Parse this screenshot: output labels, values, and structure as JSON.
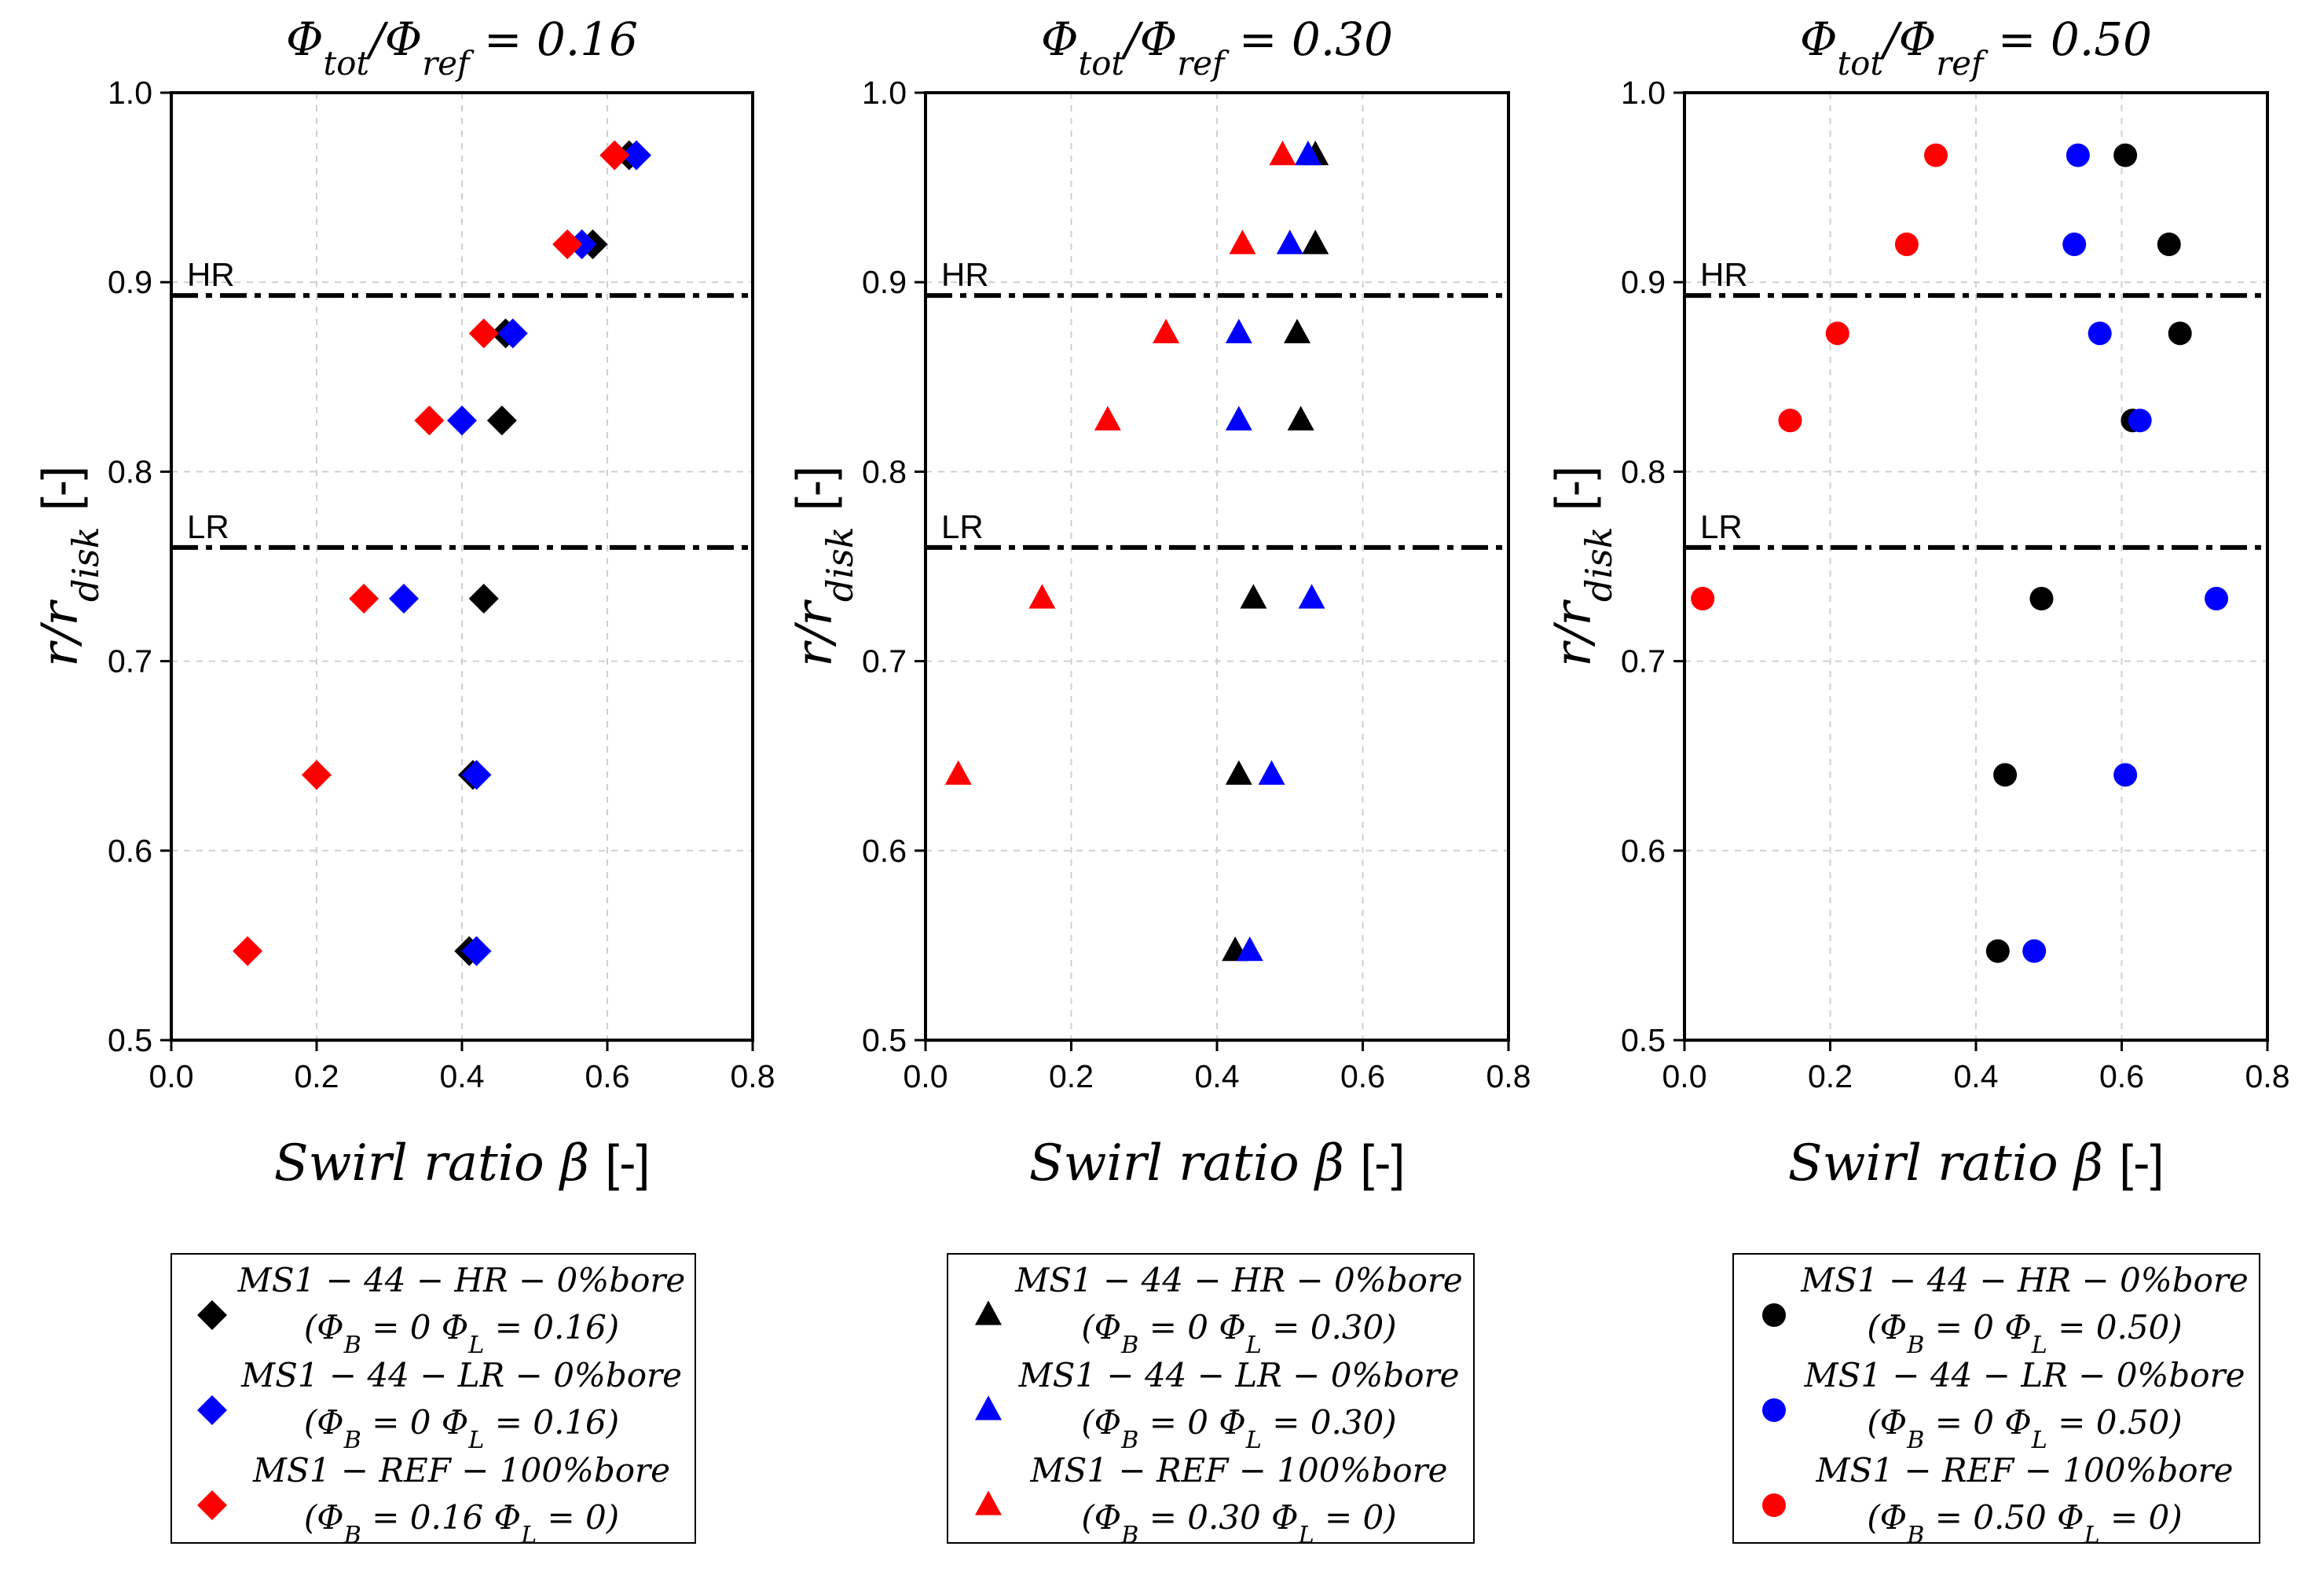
{
  "chart_data": [
    {
      "type": "scatter",
      "marker": "diamond",
      "title": "Φtot/Φref = 0.16",
      "xlabel": "Swirl ratio β [-]",
      "ylabel": "r/rdisk [-]",
      "xlim": [
        0.0,
        0.8
      ],
      "ylim": [
        0.5,
        1.0
      ],
      "xticks": [
        "0.0",
        "0.2",
        "0.4",
        "0.6",
        "0.8"
      ],
      "yticks": [
        "0.5",
        "0.6",
        "0.7",
        "0.8",
        "0.9",
        "1.0"
      ],
      "grid": true,
      "reference_lines": [
        {
          "label": "HR",
          "y": 0.893
        },
        {
          "label": "LR",
          "y": 0.76
        }
      ],
      "series": [
        {
          "name": "MS1 − 44 − HR − 0%bore",
          "condition": "(ΦB = 0 ΦL = 0.16)",
          "color": "#000000",
          "points": [
            [
              0.63,
              0.967
            ],
            [
              0.58,
              0.92
            ],
            [
              0.46,
              0.873
            ],
            [
              0.455,
              0.827
            ],
            [
              0.43,
              0.733
            ],
            [
              0.415,
              0.64
            ],
            [
              0.41,
              0.547
            ]
          ]
        },
        {
          "name": "MS1 − 44 − LR − 0%bore",
          "condition": "(ΦB = 0 ΦL = 0.16)",
          "color": "#0000ff",
          "points": [
            [
              0.64,
              0.967
            ],
            [
              0.565,
              0.92
            ],
            [
              0.47,
              0.873
            ],
            [
              0.4,
              0.827
            ],
            [
              0.32,
              0.733
            ],
            [
              0.42,
              0.64
            ],
            [
              0.42,
              0.547
            ]
          ]
        },
        {
          "name": "MS1 − REF − 100%bore",
          "condition": "(ΦB = 0.16 ΦL = 0)",
          "color": "#ff0000",
          "points": [
            [
              0.61,
              0.967
            ],
            [
              0.545,
              0.92
            ],
            [
              0.43,
              0.873
            ],
            [
              0.355,
              0.827
            ],
            [
              0.265,
              0.733
            ],
            [
              0.2,
              0.64
            ],
            [
              0.105,
              0.547
            ]
          ]
        }
      ]
    },
    {
      "type": "scatter",
      "marker": "triangle",
      "title": "Φtot/Φref = 0.30",
      "xlabel": "Swirl ratio β [-]",
      "ylabel": "r/rdisk [-]",
      "xlim": [
        0.0,
        0.8
      ],
      "ylim": [
        0.5,
        1.0
      ],
      "xticks": [
        "0.0",
        "0.2",
        "0.4",
        "0.6",
        "0.8"
      ],
      "yticks": [
        "0.5",
        "0.6",
        "0.7",
        "0.8",
        "0.9",
        "1.0"
      ],
      "grid": true,
      "reference_lines": [
        {
          "label": "HR",
          "y": 0.893
        },
        {
          "label": "LR",
          "y": 0.76
        }
      ],
      "series": [
        {
          "name": "MS1 − 44 − HR − 0%bore",
          "condition": "(ΦB = 0 ΦL = 0.30)",
          "color": "#000000",
          "points": [
            [
              0.535,
              0.967
            ],
            [
              0.535,
              0.92
            ],
            [
              0.51,
              0.873
            ],
            [
              0.515,
              0.827
            ],
            [
              0.45,
              0.733
            ],
            [
              0.43,
              0.64
            ],
            [
              0.425,
              0.547
            ]
          ]
        },
        {
          "name": "MS1 − 44 − LR − 0%bore",
          "condition": "(ΦB = 0 ΦL = 0.30)",
          "color": "#0000ff",
          "points": [
            [
              0.525,
              0.967
            ],
            [
              0.5,
              0.92
            ],
            [
              0.43,
              0.873
            ],
            [
              0.43,
              0.827
            ],
            [
              0.53,
              0.733
            ],
            [
              0.475,
              0.64
            ],
            [
              0.445,
              0.547
            ]
          ]
        },
        {
          "name": "MS1 − REF − 100%bore",
          "condition": "(ΦB = 0.30 ΦL = 0)",
          "color": "#ff0000",
          "points": [
            [
              0.49,
              0.967
            ],
            [
              0.435,
              0.92
            ],
            [
              0.33,
              0.873
            ],
            [
              0.25,
              0.827
            ],
            [
              0.16,
              0.733
            ],
            [
              0.045,
              0.64
            ]
          ]
        }
      ]
    },
    {
      "type": "scatter",
      "marker": "circle",
      "title": "Φtot/Φref = 0.50",
      "xlabel": "Swirl ratio β [-]",
      "ylabel": "r/rdisk [-]",
      "xlim": [
        0.0,
        0.8
      ],
      "ylim": [
        0.5,
        1.0
      ],
      "xticks": [
        "0.0",
        "0.2",
        "0.4",
        "0.6",
        "0.8"
      ],
      "yticks": [
        "0.5",
        "0.6",
        "0.7",
        "0.8",
        "0.9",
        "1.0"
      ],
      "grid": true,
      "reference_lines": [
        {
          "label": "HR",
          "y": 0.893
        },
        {
          "label": "LR",
          "y": 0.76
        }
      ],
      "series": [
        {
          "name": "MS1 − 44 − HR − 0%bore",
          "condition": "(ΦB = 0 ΦL = 0.50)",
          "color": "#000000",
          "points": [
            [
              0.605,
              0.967
            ],
            [
              0.665,
              0.92
            ],
            [
              0.68,
              0.873
            ],
            [
              0.615,
              0.827
            ],
            [
              0.49,
              0.733
            ],
            [
              0.44,
              0.64
            ],
            [
              0.43,
              0.547
            ]
          ]
        },
        {
          "name": "MS1 − 44 − LR − 0%bore",
          "condition": "(ΦB = 0 ΦL = 0.50)",
          "color": "#0000ff",
          "points": [
            [
              0.54,
              0.967
            ],
            [
              0.535,
              0.92
            ],
            [
              0.57,
              0.873
            ],
            [
              0.625,
              0.827
            ],
            [
              0.73,
              0.733
            ],
            [
              0.605,
              0.64
            ],
            [
              0.48,
              0.547
            ]
          ]
        },
        {
          "name": "MS1 − REF − 100%bore",
          "condition": "(ΦB = 0.50 ΦL = 0)",
          "color": "#ff0000",
          "points": [
            [
              0.345,
              0.967
            ],
            [
              0.305,
              0.92
            ],
            [
              0.21,
              0.873
            ],
            [
              0.145,
              0.827
            ],
            [
              0.025,
              0.733
            ]
          ]
        }
      ]
    }
  ]
}
